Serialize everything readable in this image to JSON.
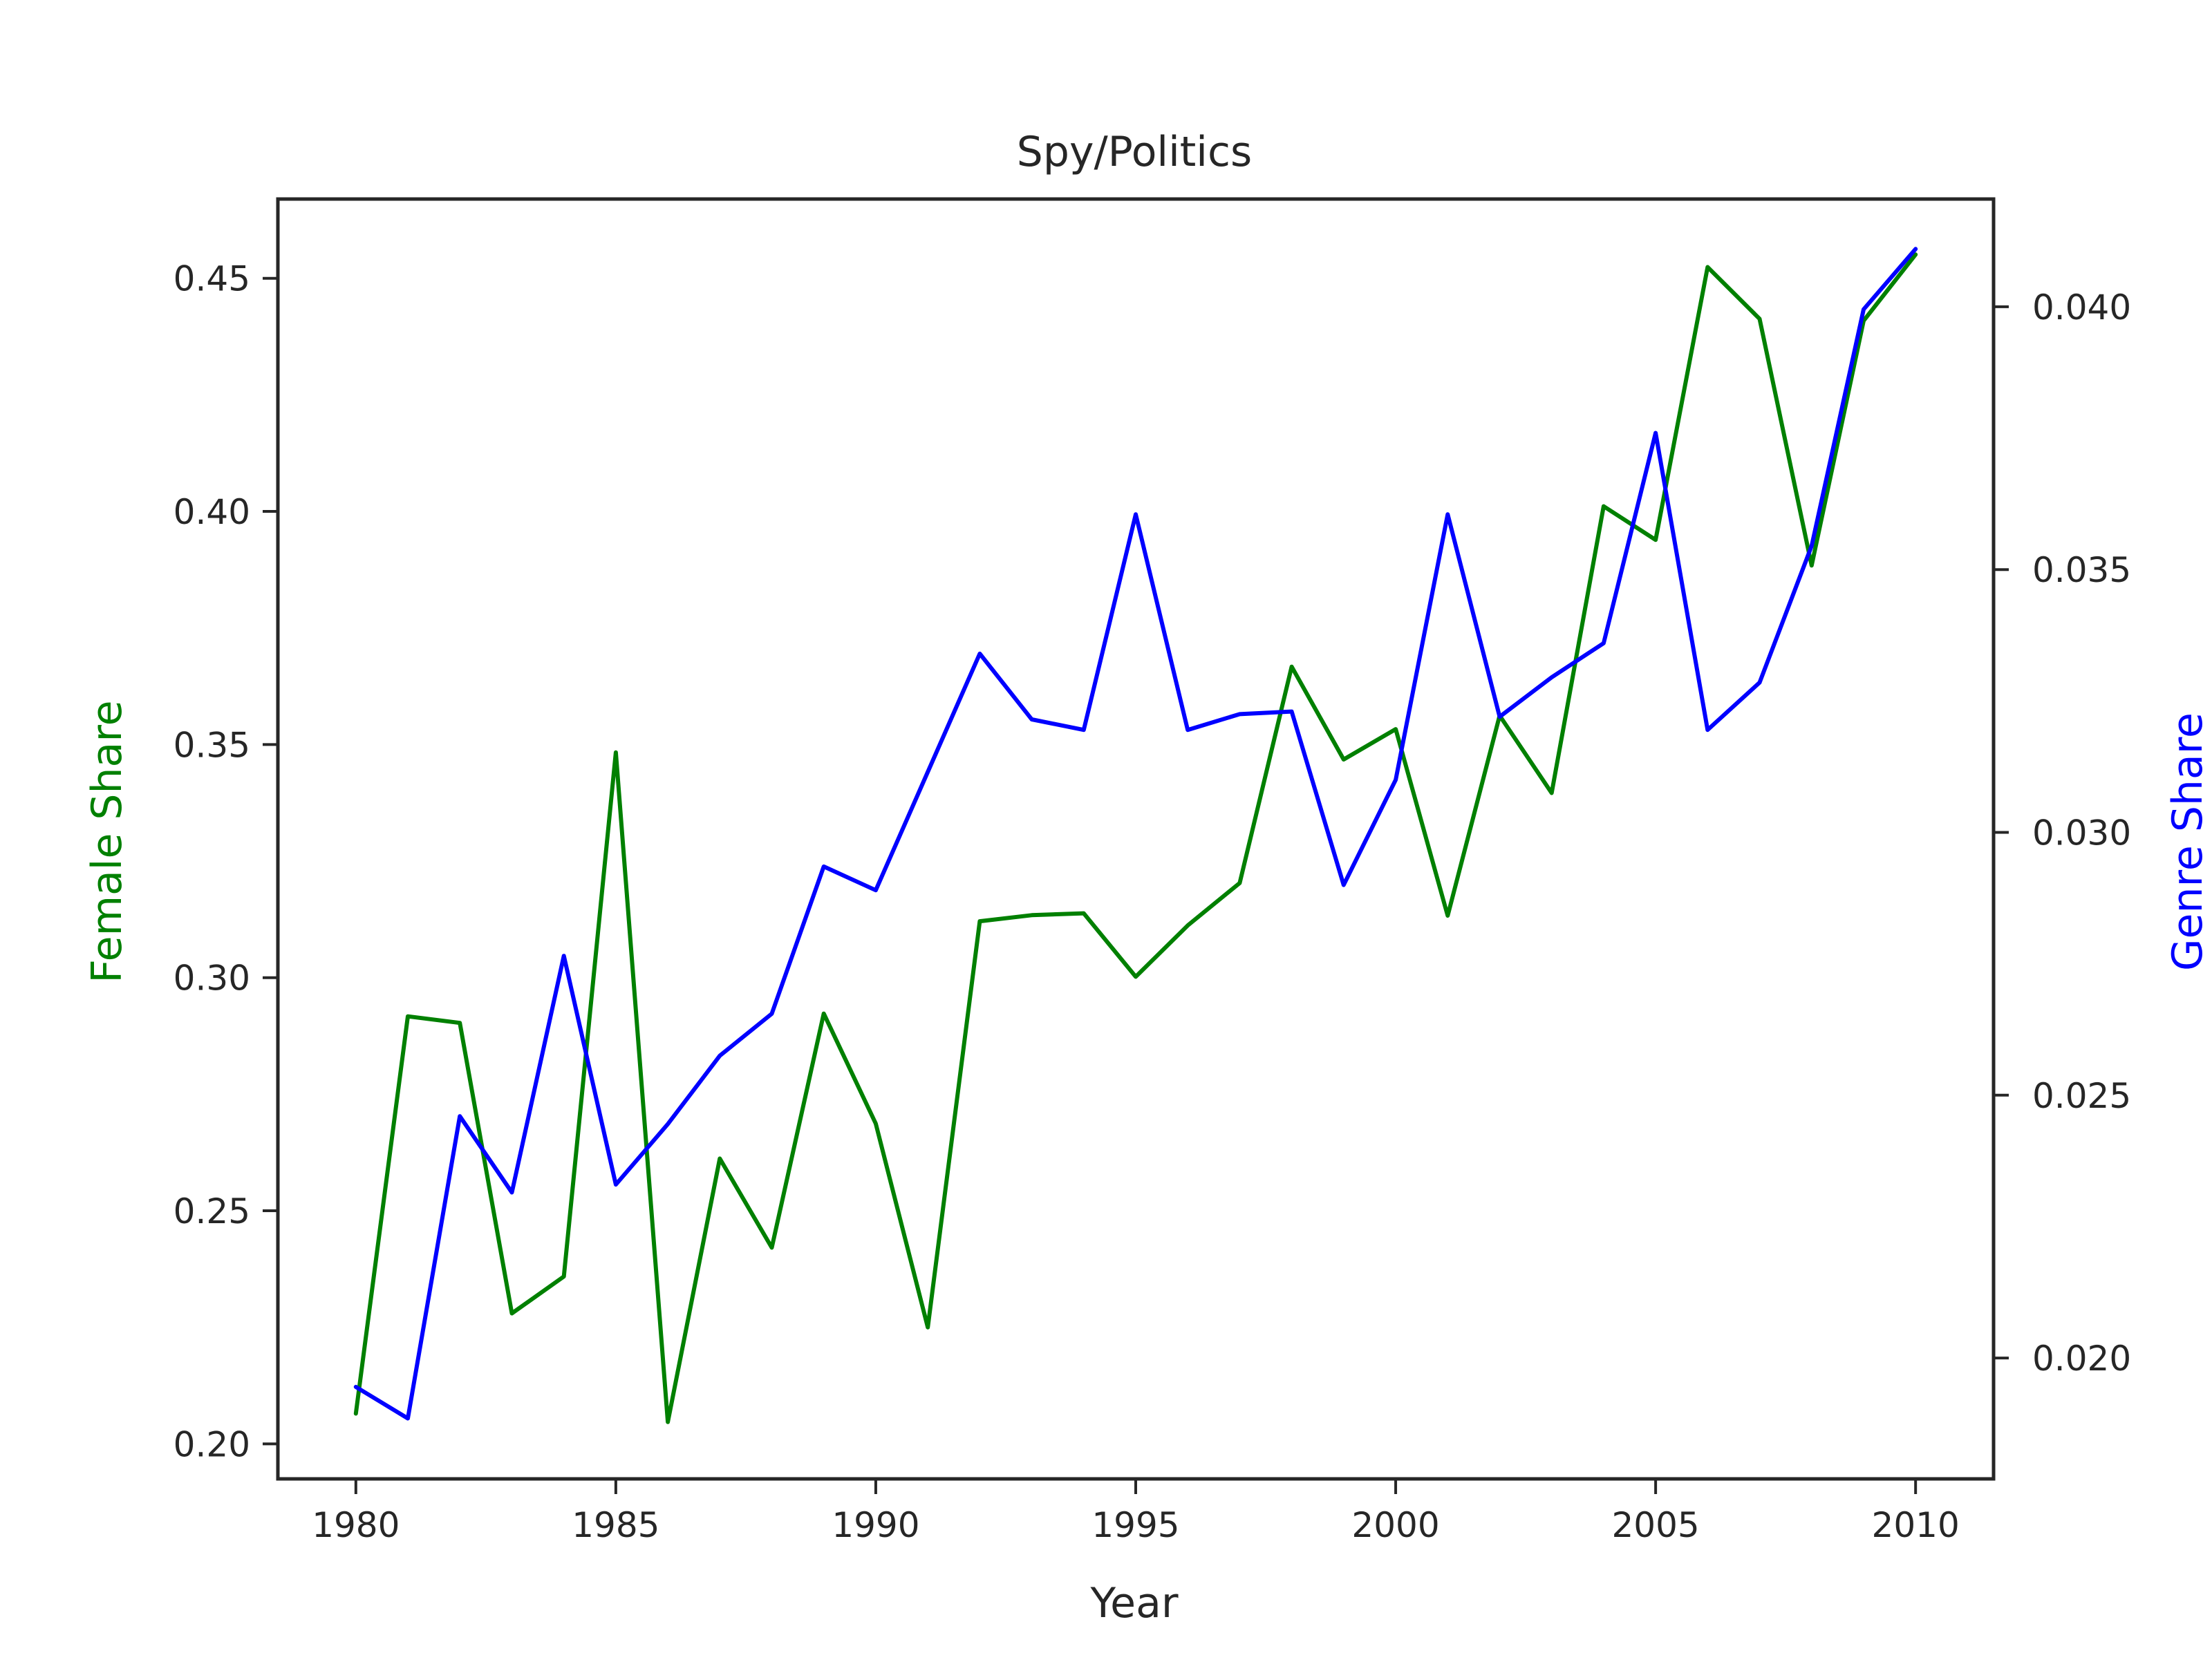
{
  "chart_data": {
    "type": "line",
    "title": "Spy/Politics",
    "xlabel": "Year",
    "ylabel_left": "Female Share",
    "ylabel_right": "Genre Share",
    "colors": {
      "left_axis": "#008000",
      "right_axis": "#0000ff",
      "frame": "#262626"
    },
    "x": [
      1980,
      1981,
      1982,
      1983,
      1984,
      1985,
      1986,
      1987,
      1988,
      1989,
      1990,
      1991,
      1992,
      1993,
      1994,
      1995,
      1996,
      1997,
      1998,
      1999,
      2000,
      2001,
      2002,
      2003,
      2004,
      2005,
      2006,
      2007,
      2008,
      2009,
      2010
    ],
    "xlim": [
      1978.5,
      2011.5
    ],
    "xticks": [
      1980,
      1985,
      1990,
      1995,
      2000,
      2005,
      2010
    ],
    "series": [
      {
        "name": "Female Share",
        "axis": "left",
        "color": "#008000",
        "values": [
          0.2065,
          0.2917,
          0.2903,
          0.228,
          0.2359,
          0.3483,
          0.2047,
          0.2612,
          0.2421,
          0.2923,
          0.2687,
          0.225,
          0.3121,
          0.3134,
          0.3138,
          0.3002,
          0.3112,
          0.3203,
          0.3667,
          0.3468,
          0.3533,
          0.3133,
          0.3562,
          0.3396,
          0.4011,
          0.3939,
          0.4524,
          0.4413,
          0.3884,
          0.4409,
          0.4551
        ]
      },
      {
        "name": "Genre Share",
        "axis": "right",
        "color": "#0000ff",
        "values": [
          0.01945,
          0.01885,
          0.0246,
          0.02315,
          0.02765,
          0.0233,
          0.02445,
          0.02575,
          0.02655,
          0.02935,
          0.0289,
          0.03115,
          0.0334,
          0.03215,
          0.03195,
          0.03605,
          0.03195,
          0.03225,
          0.0323,
          0.029,
          0.031,
          0.03605,
          0.0322,
          0.03295,
          0.0336,
          0.0376,
          0.03195,
          0.03285,
          0.03545,
          0.03995,
          0.0411
        ]
      }
    ],
    "ylim_left": [
      0.1925,
      0.467
    ],
    "yticks_left": [
      0.2,
      0.25,
      0.3,
      0.35,
      0.4,
      0.45
    ],
    "ylim_right": [
      0.0177,
      0.04205
    ],
    "yticks_right": [
      0.02,
      0.025,
      0.03,
      0.035,
      0.04
    ],
    "grid": false,
    "legend": "none"
  }
}
